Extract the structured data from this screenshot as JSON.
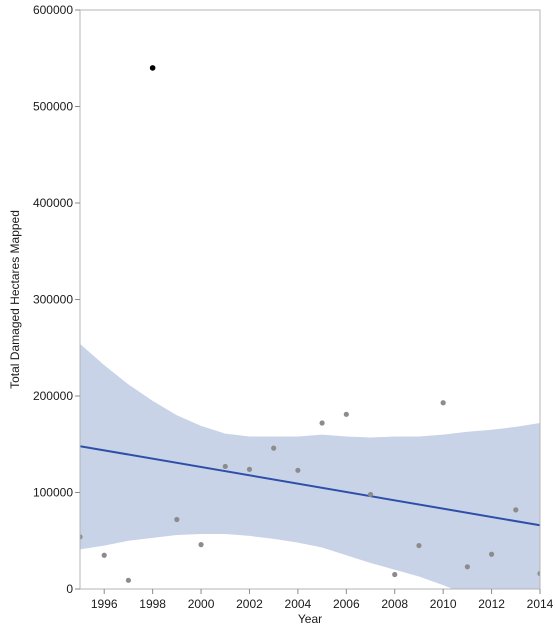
{
  "chart_data": {
    "type": "scatter",
    "title": "",
    "xlabel": "Year",
    "ylabel": "Total Damaged Hectares Mapped",
    "xlim": [
      1995,
      2014
    ],
    "ylim": [
      0,
      600000
    ],
    "x_ticks": [
      "1996",
      "1998",
      "2000",
      "2002",
      "2004",
      "2006",
      "2008",
      "2010",
      "2012",
      "2014"
    ],
    "y_ticks": [
      "0",
      "100000",
      "200000",
      "300000",
      "400000",
      "500000",
      "600000"
    ],
    "grid": false,
    "legend": "none",
    "points": [
      {
        "x": 1995,
        "y": 54000
      },
      {
        "x": 1996,
        "y": 35000
      },
      {
        "x": 1997,
        "y": 9000
      },
      {
        "x": 1998,
        "y": 540000,
        "highlighted": true
      },
      {
        "x": 1999,
        "y": 72000
      },
      {
        "x": 2000,
        "y": 46000
      },
      {
        "x": 2001,
        "y": 127000
      },
      {
        "x": 2002,
        "y": 124000
      },
      {
        "x": 2003,
        "y": 146000
      },
      {
        "x": 2004,
        "y": 123000
      },
      {
        "x": 2005,
        "y": 172000
      },
      {
        "x": 2006,
        "y": 181000
      },
      {
        "x": 2007,
        "y": 98000
      },
      {
        "x": 2008,
        "y": 15000
      },
      {
        "x": 2009,
        "y": 45000
      },
      {
        "x": 2010,
        "y": 193000
      },
      {
        "x": 2011,
        "y": 23000
      },
      {
        "x": 2012,
        "y": 36000
      },
      {
        "x": 2013,
        "y": 82000
      },
      {
        "x": 2014,
        "y": 16000
      }
    ],
    "fit_line": {
      "x": [
        1995,
        2014
      ],
      "y": [
        148000,
        66000
      ]
    },
    "confidence_band": {
      "x": [
        1995,
        1996,
        1997,
        1998,
        1999,
        2000,
        2001,
        2002,
        2003,
        2004,
        2005,
        2006,
        2007,
        2008,
        2009,
        2010,
        2011,
        2012,
        2013,
        2014
      ],
      "upper": [
        254000,
        232000,
        212000,
        195000,
        180000,
        169000,
        161000,
        158000,
        158000,
        158000,
        160000,
        158000,
        157000,
        158000,
        158000,
        160000,
        163000,
        165000,
        168000,
        172000
      ],
      "lower": [
        41000,
        45000,
        50000,
        53000,
        56000,
        57000,
        57000,
        55000,
        52000,
        48000,
        43000,
        35000,
        27000,
        20000,
        13000,
        4000,
        -6000,
        -14000,
        -24000,
        -34000
      ]
    },
    "colors": {
      "point": "#8c8c8c",
      "highlighted_point": "#000000",
      "fit_line": "#2e4fa8",
      "band": "#c9d3e8",
      "frame": "#b4b4b4"
    }
  }
}
